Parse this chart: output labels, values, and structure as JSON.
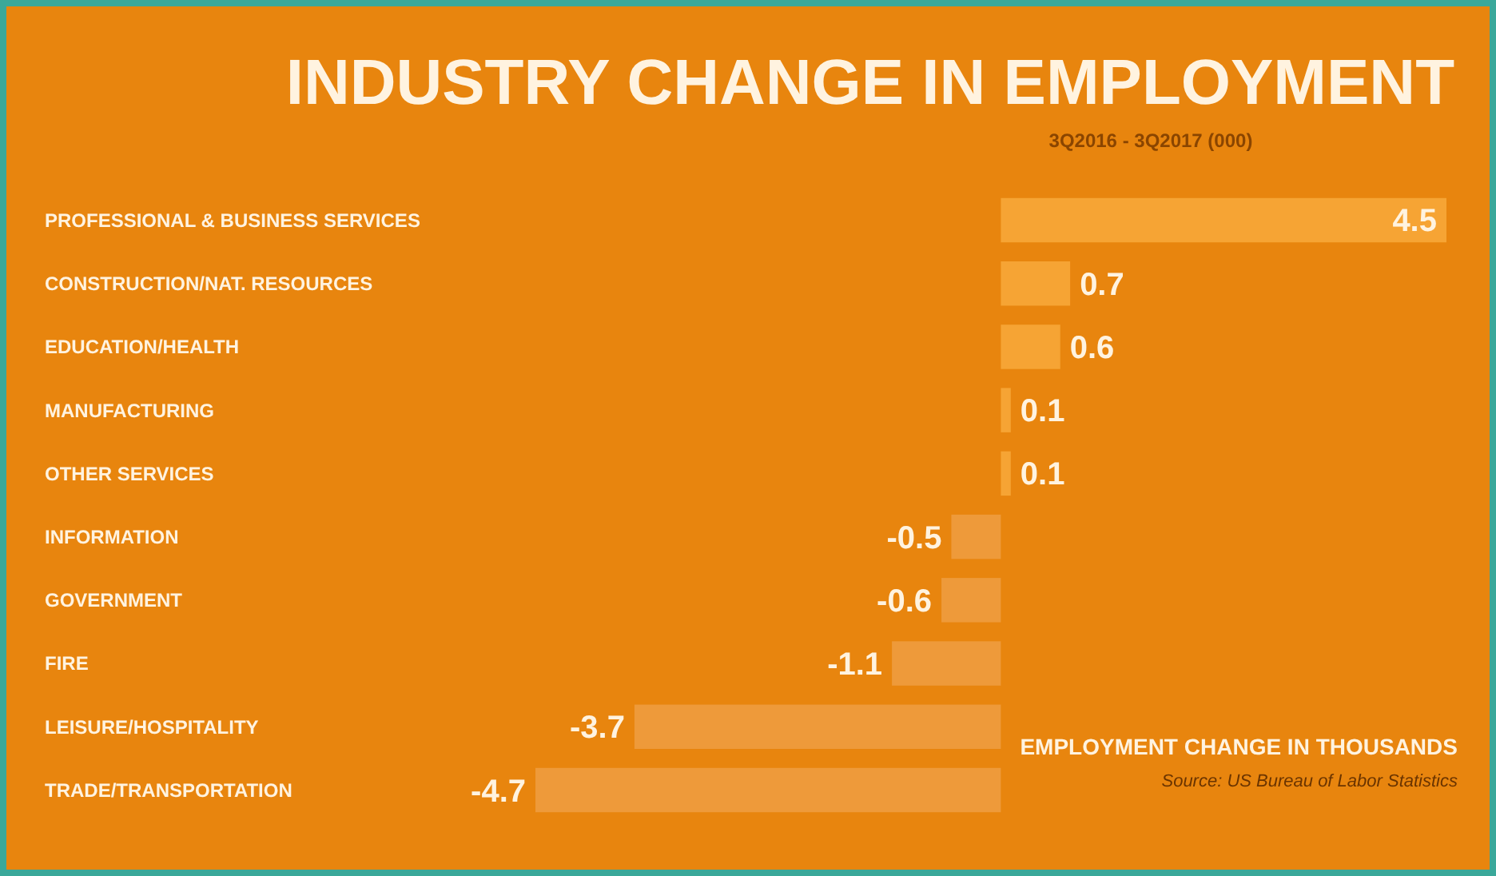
{
  "chart_data": {
    "type": "bar",
    "orientation": "horizontal",
    "title": "INDUSTRY CHANGE IN EMPLOYMENT",
    "subtitle": "3Q2016 - 3Q2017 (000)",
    "xlabel": "EMPLOYMENT CHANGE IN THOUSANDS",
    "annotations": [
      "Source: US Bureau of Labor Statistics"
    ],
    "categories": [
      "PROFESSIONAL & BUSINESS SERVICES",
      "CONSTRUCTION/NAT. RESOURCES",
      "EDUCATION/HEALTH",
      "MANUFACTURING",
      "OTHER SERVICES",
      "INFORMATION",
      "GOVERNMENT",
      "FIRE",
      "LEISURE/HOSPITALITY",
      "TRADE/TRANSPORTATION"
    ],
    "values": [
      4.5,
      0.7,
      0.6,
      0.1,
      0.1,
      -0.5,
      -0.6,
      -1.1,
      -3.7,
      -4.7
    ],
    "colors": [
      "#f6a434",
      "#f6a434",
      "#f6a434",
      "#f6a434",
      "#f6a434",
      "#ee9a3a",
      "#ee9a3a",
      "#ee9a3a",
      "#ee9a3a",
      "#ee9a3a"
    ],
    "data_labels": true
  }
}
